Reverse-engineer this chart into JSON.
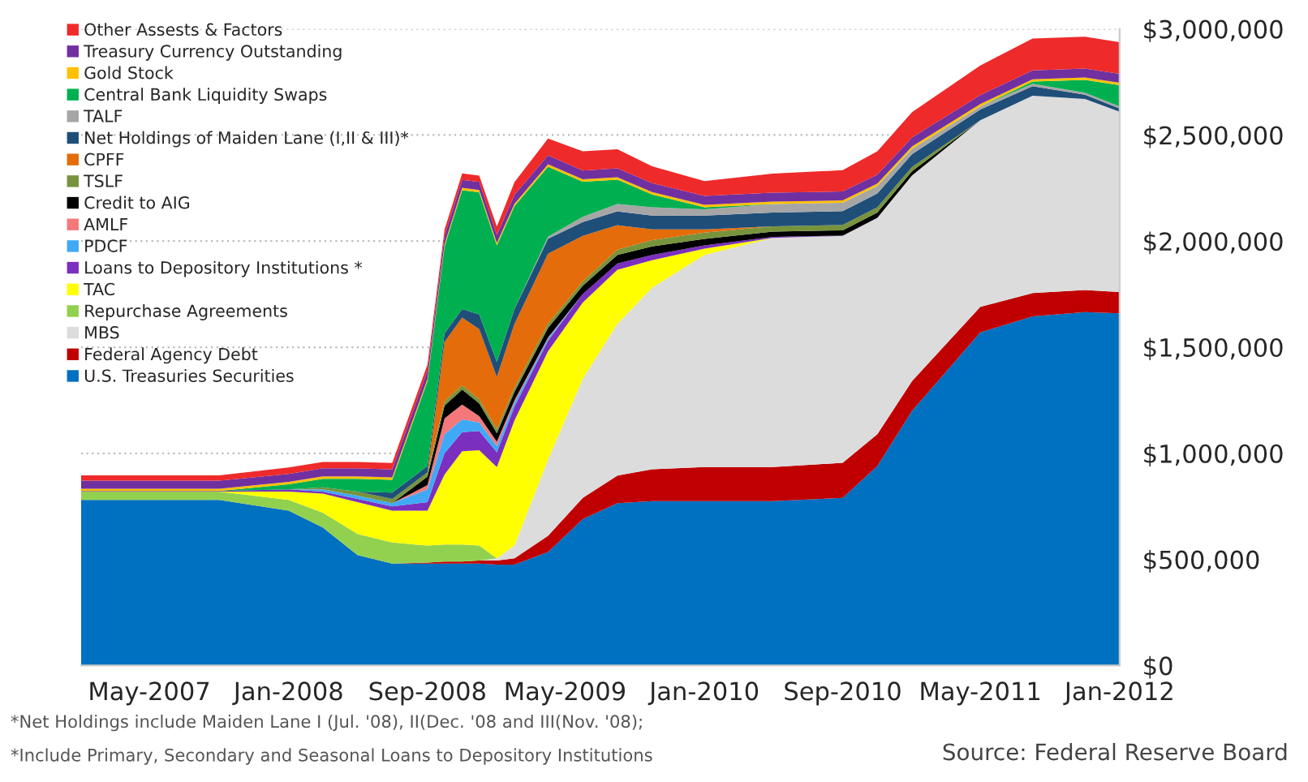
{
  "chart_data": {
    "type": "area",
    "stacked": true,
    "x": [
      "2007-01",
      "2007-05",
      "2007-09",
      "2008-01",
      "2008-03",
      "2008-05",
      "2008-07",
      "2008-09",
      "2008-10",
      "2008-11",
      "2008-12",
      "2009-01",
      "2009-02",
      "2009-04",
      "2009-06",
      "2009-08",
      "2009-10",
      "2010-01",
      "2010-05",
      "2010-09",
      "2010-11",
      "2011-01",
      "2011-05",
      "2011-08",
      "2011-11",
      "2012-01"
    ],
    "series": [
      {
        "name": "U.S. Treasuries Securities",
        "color": "#0070c0",
        "values": [
          780000,
          780000,
          780000,
          730000,
          650000,
          520000,
          480000,
          480000,
          480000,
          480000,
          480000,
          475000,
          475000,
          535000,
          690000,
          765000,
          775000,
          775000,
          775000,
          790000,
          940000,
          1200000,
          1570000,
          1645000,
          1665000,
          1660000
        ]
      },
      {
        "name": "Federal Agency Debt",
        "color": "#c00000",
        "values": [
          null,
          null,
          null,
          null,
          null,
          null,
          0,
          5000,
          10000,
          10000,
          15000,
          20000,
          30000,
          76000,
          100000,
          130000,
          150000,
          160000,
          160000,
          165000,
          150000,
          140000,
          120000,
          110000,
          105000,
          100000
        ]
      },
      {
        "name": "MBS",
        "color": "#dcdcdc",
        "values": [
          null,
          null,
          null,
          null,
          null,
          null,
          null,
          null,
          null,
          null,
          0,
          10000,
          60000,
          360000,
          560000,
          715000,
          855000,
          1000000,
          1080000,
          1070000,
          1020000,
          970000,
          880000,
          930000,
          900000,
          850000
        ]
      },
      {
        "name": "Repurchase Agreements",
        "color": "#92d050",
        "values": [
          40000,
          40000,
          40000,
          50000,
          70000,
          100000,
          100000,
          80000,
          80000,
          80000,
          70000,
          0,
          null,
          null,
          null,
          null,
          null,
          null,
          null,
          null,
          null,
          null,
          null,
          null,
          null,
          null
        ]
      },
      {
        "name": "TAC",
        "color": "#ffff00",
        "values": [
          null,
          null,
          0,
          40000,
          90000,
          150000,
          150000,
          165000,
          330000,
          440000,
          450000,
          430000,
          590000,
          510000,
          360000,
          255000,
          130000,
          30000,
          0,
          null,
          null,
          null,
          null,
          null,
          null,
          null
        ]
      },
      {
        "name": "Loans to Depository Institutions *",
        "color": "#7b2fbe",
        "values": [
          2000,
          2000,
          2000,
          10000,
          10000,
          15000,
          20000,
          40000,
          100000,
          90000,
          90000,
          70000,
          65000,
          50000,
          40000,
          30000,
          25000,
          15000,
          5000,
          1000,
          0,
          null,
          null,
          null,
          null,
          null
        ]
      },
      {
        "name": "PDCF",
        "color": "#3fa9f5",
        "values": [
          null,
          null,
          null,
          0,
          10000,
          15000,
          15000,
          60000,
          90000,
          60000,
          40000,
          30000,
          20000,
          10000,
          0,
          null,
          null,
          null,
          null,
          null,
          null,
          null,
          null,
          null,
          null,
          null
        ]
      },
      {
        "name": "AMLF",
        "color": "#f4777a",
        "values": [
          null,
          null,
          null,
          null,
          null,
          null,
          0,
          20000,
          75000,
          70000,
          30000,
          20000,
          10000,
          5000,
          0,
          null,
          null,
          null,
          null,
          null,
          null,
          null,
          null,
          null,
          null,
          null
        ]
      },
      {
        "name": "Credit to AIG",
        "color": "#000000",
        "values": [
          null,
          null,
          null,
          null,
          null,
          null,
          0,
          40000,
          60000,
          70000,
          60000,
          40000,
          40000,
          45000,
          40000,
          40000,
          40000,
          30000,
          25000,
          25000,
          25000,
          20000,
          0,
          null,
          null,
          null
        ]
      },
      {
        "name": "TSLF",
        "color": "#77933c",
        "values": [
          null,
          null,
          null,
          0,
          10000,
          20000,
          20000,
          20000,
          20000,
          20000,
          20000,
          20000,
          20000,
          20000,
          20000,
          25000,
          30000,
          30000,
          25000,
          25000,
          25000,
          20000,
          0,
          null,
          null,
          null
        ]
      },
      {
        "name": "CPFF",
        "color": "#e46c0a",
        "values": [
          null,
          null,
          null,
          null,
          null,
          null,
          null,
          0,
          280000,
          320000,
          330000,
          245000,
          300000,
          330000,
          215000,
          115000,
          50000,
          15000,
          0,
          null,
          null,
          null,
          null,
          null,
          null,
          null
        ]
      },
      {
        "name": "Net Holdings of Maiden Lane (I,II & III)*",
        "color": "#1f4e79",
        "values": [
          null,
          null,
          null,
          null,
          null,
          0,
          30000,
          30000,
          40000,
          40000,
          70000,
          70000,
          70000,
          70000,
          65000,
          65000,
          65000,
          65000,
          65000,
          65000,
          65000,
          60000,
          50000,
          45000,
          20000,
          15000
        ]
      },
      {
        "name": "TALF",
        "color": "#a6a6a6",
        "values": [
          null,
          null,
          null,
          null,
          null,
          null,
          null,
          null,
          null,
          null,
          null,
          null,
          0,
          10000,
          25000,
          35000,
          40000,
          30000,
          40000,
          40000,
          35000,
          25000,
          15000,
          12000,
          10000,
          10000
        ]
      },
      {
        "name": "Central Bank Liquidity Swaps",
        "color": "#00b050",
        "values": [
          null,
          null,
          0,
          24000,
          40000,
          60000,
          60000,
          400000,
          410000,
          560000,
          575000,
          550000,
          485000,
          330000,
          165000,
          115000,
          60000,
          10000,
          0,
          0,
          0,
          0,
          0,
          10000,
          60000,
          100000
        ]
      },
      {
        "name": "Gold Stock",
        "color": "#ffc000",
        "values": [
          11000,
          11000,
          11000,
          11000,
          11000,
          11000,
          11000,
          11000,
          11000,
          11000,
          11000,
          11000,
          11000,
          11000,
          11000,
          11000,
          11000,
          11000,
          11000,
          11000,
          11000,
          11000,
          11000,
          11000,
          11000,
          11000
        ]
      },
      {
        "name": "Treasury Currency Outstanding",
        "color": "#7030a0",
        "values": [
          38000,
          38000,
          38000,
          38000,
          38000,
          38000,
          38000,
          38000,
          38000,
          38000,
          38000,
          38000,
          42000,
          42000,
          42000,
          42000,
          42000,
          42000,
          42000,
          42000,
          42000,
          42000,
          42000,
          42000,
          42000,
          42000
        ]
      },
      {
        "name": "Other Assests & Factors",
        "color": "#ee2a2a",
        "values": [
          25000,
          25000,
          25000,
          30000,
          30000,
          30000,
          30000,
          30000,
          30000,
          30000,
          30000,
          40000,
          60000,
          80000,
          90000,
          90000,
          80000,
          70000,
          90000,
          100000,
          110000,
          120000,
          140000,
          150000,
          150000,
          150000
        ]
      }
    ],
    "xlim": [
      "2007-01",
      "2012-01"
    ],
    "xticks": [
      {
        "value": "2007-05",
        "label": "May-2007"
      },
      {
        "value": "2008-01",
        "label": "Jan-2008"
      },
      {
        "value": "2008-09",
        "label": "Sep-2008"
      },
      {
        "value": "2009-05",
        "label": "May-2009"
      },
      {
        "value": "2010-01",
        "label": "Jan-2010"
      },
      {
        "value": "2010-09",
        "label": "Sep-2010"
      },
      {
        "value": "2011-05",
        "label": "May-2011"
      },
      {
        "value": "2012-01",
        "label": "Jan-2012"
      }
    ],
    "ylim": [
      0,
      3000000
    ],
    "yticks": [
      {
        "value": 0,
        "label": "$0"
      },
      {
        "value": 500000,
        "label": "$500,000"
      },
      {
        "value": 1000000,
        "label": "$1,000,000"
      },
      {
        "value": 1500000,
        "label": "$1,500,000"
      },
      {
        "value": 2000000,
        "label": "$2,000,000"
      },
      {
        "value": 2500000,
        "label": "$2,500,000"
      },
      {
        "value": 3000000,
        "label": "$3,000,000"
      }
    ],
    "grid": "y",
    "legend": "top left",
    "annotations": [
      "*Net Holdings include Maiden Lane I (Jul. '08), II(Dec. '08 and III(Nov. '08);",
      "*Include Primary, Secondary and Seasonal Loans to Depository Institutions",
      "Source: Federal Reserve Board"
    ]
  }
}
